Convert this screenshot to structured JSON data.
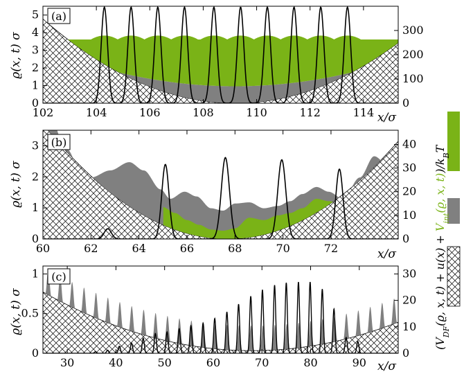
{
  "legend": {
    "prefix": "(",
    "part_df": "V",
    "part_df_sub": "DF",
    "part_df_args": "(ϱ, x, t)",
    "plus1": " + ",
    "part_u": "u(x)",
    "plus2": " + ",
    "part_int": "V",
    "part_int_sub": "int",
    "part_int_args": "(ϱ, x, t)",
    "suffix": ")/k",
    "suffix_sub": "B",
    "suffix_T": "T"
  },
  "colors": {
    "green": "#7ab317",
    "gray": "#808080",
    "black": "#000000"
  },
  "chart_data": [
    {
      "type": "area",
      "panel_label": "(a)",
      "xlabel": "x/σ",
      "ylabel": "ϱ(x, t) σ",
      "xlim": [
        102,
        115.3
      ],
      "ylim_left": [
        0,
        5.5
      ],
      "ylim_right": [
        0,
        400
      ],
      "xticks": [
        102,
        104,
        106,
        108,
        110,
        112,
        114
      ],
      "yticks_left": [
        0,
        1,
        2,
        3,
        4,
        5
      ],
      "yticks_right": [
        0,
        100,
        200,
        300
      ],
      "ylabel_right": "",
      "trap_center": 109.2,
      "trap_curvature": 6.7,
      "trap_cap": 420,
      "gray_band": {
        "base": 70,
        "slope": 3.0,
        "cap": 268
      },
      "green_top": {
        "base": 263,
        "scallop_depth": 16
      },
      "peaks": [
        104.3,
        105.3,
        106.3,
        107.3,
        108.4,
        109.4,
        110.4,
        111.4,
        112.4,
        113.4
      ],
      "peak_height": 5.45,
      "peak_width": 0.12
    },
    {
      "type": "area",
      "panel_label": "(b)",
      "xlabel": "x/σ",
      "ylabel": "ϱ(x, t) σ",
      "xlim": [
        60,
        74.8
      ],
      "ylim_left": [
        0,
        3.5
      ],
      "ylim_right": [
        0,
        46
      ],
      "xticks": [
        60,
        62,
        64,
        66,
        68,
        70,
        72
      ],
      "yticks_left": [
        0,
        1,
        2,
        3
      ],
      "yticks_right": [
        0,
        10,
        20,
        30,
        40
      ],
      "ylabel_right": "",
      "trap_center": 67.7,
      "trap_curvature": 0.82,
      "total_points": [
        [
          60.0,
          60
        ],
        [
          61.0,
          38
        ],
        [
          61.6,
          28
        ],
        [
          62.0,
          26
        ],
        [
          62.8,
          29
        ],
        [
          63.6,
          32.5
        ],
        [
          64.2,
          29
        ],
        [
          64.9,
          21
        ],
        [
          65.3,
          17
        ],
        [
          65.9,
          20
        ],
        [
          66.4,
          18
        ],
        [
          67.0,
          13
        ],
        [
          67.5,
          12
        ],
        [
          68.0,
          15
        ],
        [
          68.6,
          15.5
        ],
        [
          69.2,
          13
        ],
        [
          69.8,
          14
        ],
        [
          70.3,
          16
        ],
        [
          70.8,
          19
        ],
        [
          71.4,
          22
        ],
        [
          71.9,
          20
        ],
        [
          72.5,
          17
        ],
        [
          73.2,
          26
        ],
        [
          73.8,
          35
        ],
        [
          74.4,
          31
        ],
        [
          74.8,
          30
        ]
      ],
      "green_points": [
        [
          65.0,
          13.5
        ],
        [
          65.5,
          11
        ],
        [
          66.0,
          8
        ],
        [
          66.5,
          6
        ],
        [
          67.0,
          4
        ],
        [
          67.5,
          3.5
        ],
        [
          68.0,
          4.5
        ],
        [
          68.6,
          9
        ],
        [
          69.2,
          8
        ],
        [
          69.8,
          10
        ],
        [
          70.3,
          11
        ],
        [
          70.8,
          13
        ],
        [
          71.4,
          17
        ],
        [
          71.9,
          16
        ],
        [
          72.5,
          15
        ],
        [
          73.1,
          17
        ],
        [
          73.8,
          14
        ],
        [
          74.4,
          12
        ],
        [
          74.8,
          12
        ]
      ],
      "peaks": [
        {
          "x": 62.7,
          "h": 0.33,
          "w": 0.15
        },
        {
          "x": 65.1,
          "h": 2.4,
          "w": 0.15
        },
        {
          "x": 67.6,
          "h": 2.62,
          "w": 0.17
        },
        {
          "x": 69.95,
          "h": 2.55,
          "w": 0.17
        },
        {
          "x": 72.35,
          "h": 2.25,
          "w": 0.15
        }
      ]
    },
    {
      "type": "area",
      "panel_label": "(c)",
      "xlabel": "x/σ",
      "ylabel": "ϱ(x, t) σ",
      "xlim": [
        25,
        98
      ],
      "ylim_left": [
        0,
        1.1
      ],
      "ylim_right": [
        0,
        33
      ],
      "xticks": [
        30,
        40,
        50,
        60,
        70,
        80,
        90
      ],
      "yticks_left": [
        0,
        0.5,
        1
      ],
      "ytick_labels_left": [
        "0",
        "0.5",
        "1"
      ],
      "yticks_right": [
        0,
        10,
        20,
        30
      ],
      "ylabel_right": "",
      "trap_center": 68.0,
      "trap_curvature": 0.012,
      "trap_offset": 1.0,
      "gray_amplitude": 9.5,
      "oscillation_period": 2.45,
      "oscillation_start": 26.1,
      "peaks": [
        {
          "x": 35.8,
          "h": 0.02
        },
        {
          "x": 38.3,
          "h": 0.04
        },
        {
          "x": 40.7,
          "h": 0.09
        },
        {
          "x": 43.2,
          "h": 0.13
        },
        {
          "x": 45.6,
          "h": 0.19
        },
        {
          "x": 48.1,
          "h": 0.25
        },
        {
          "x": 50.5,
          "h": 0.27
        },
        {
          "x": 53.0,
          "h": 0.31
        },
        {
          "x": 55.4,
          "h": 0.35
        },
        {
          "x": 57.9,
          "h": 0.38
        },
        {
          "x": 60.3,
          "h": 0.44
        },
        {
          "x": 62.8,
          "h": 0.52
        },
        {
          "x": 65.2,
          "h": 0.62
        },
        {
          "x": 67.7,
          "h": 0.72
        },
        {
          "x": 70.1,
          "h": 0.8
        },
        {
          "x": 72.6,
          "h": 0.86
        },
        {
          "x": 75.0,
          "h": 0.89
        },
        {
          "x": 77.5,
          "h": 0.9
        },
        {
          "x": 79.9,
          "h": 0.9
        },
        {
          "x": 82.4,
          "h": 0.81
        },
        {
          "x": 84.8,
          "h": 0.56
        },
        {
          "x": 87.3,
          "h": 0.2
        },
        {
          "x": 89.7,
          "h": 0.15
        }
      ],
      "peak_width": 0.22
    }
  ]
}
